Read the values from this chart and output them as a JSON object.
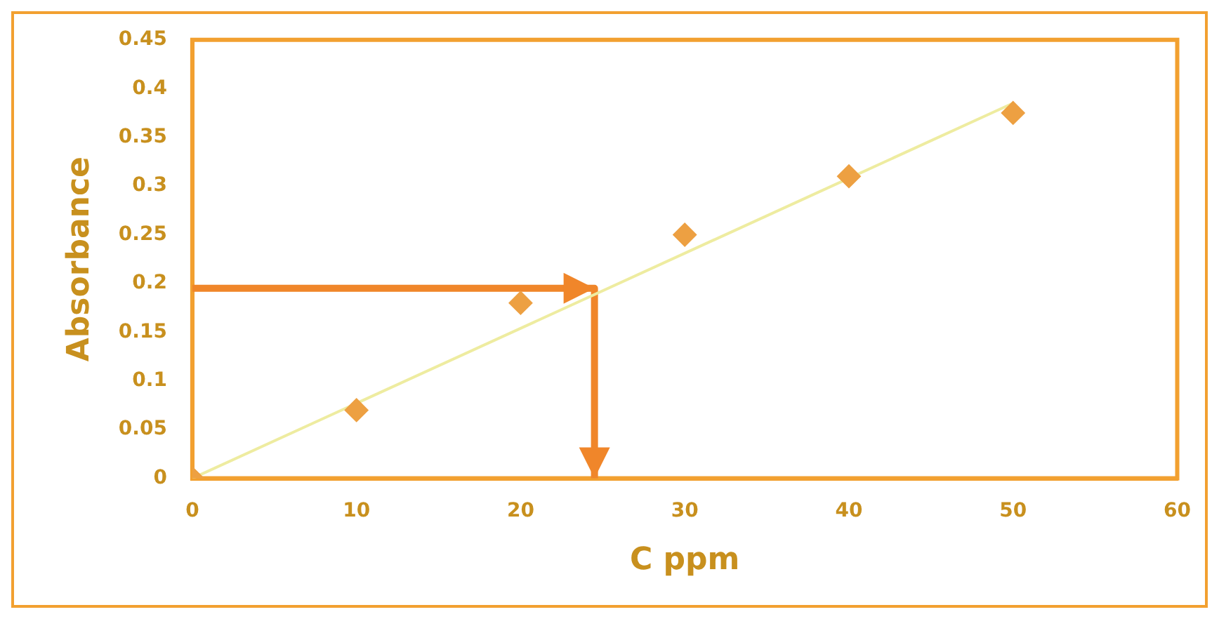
{
  "chart_data": {
    "type": "scatter",
    "xlabel": "C ppm",
    "ylabel": "Absorbance",
    "series": [
      {
        "color": "#eda042",
        "x": [
          0,
          10,
          20,
          30,
          40,
          50
        ],
        "values": [
          0,
          0.07,
          0.18,
          0.25,
          0.31,
          0.375
        ],
        "marker": "diamond"
      },
      {
        "type": "line",
        "color": "#eeeca0",
        "x": [
          0,
          50
        ],
        "values": [
          0,
          0.385
        ],
        "marker": "none"
      },
      {
        "type": "line",
        "color": "#f0862a",
        "x": [
          0,
          24.5,
          24.5
        ],
        "values": [
          0.195,
          0.195,
          0
        ],
        "marker": "none"
      }
    ],
    "xlim": [
      0,
      60
    ],
    "xticks": [
      0,
      10,
      20,
      30,
      40,
      50,
      60
    ],
    "ylim": [
      0,
      0.45
    ],
    "yticks": [
      0,
      0.05,
      0.1,
      0.15,
      0.2,
      0.25,
      0.3,
      0.35,
      0.4,
      0.45
    ],
    "grid": false,
    "legend": false
  }
}
